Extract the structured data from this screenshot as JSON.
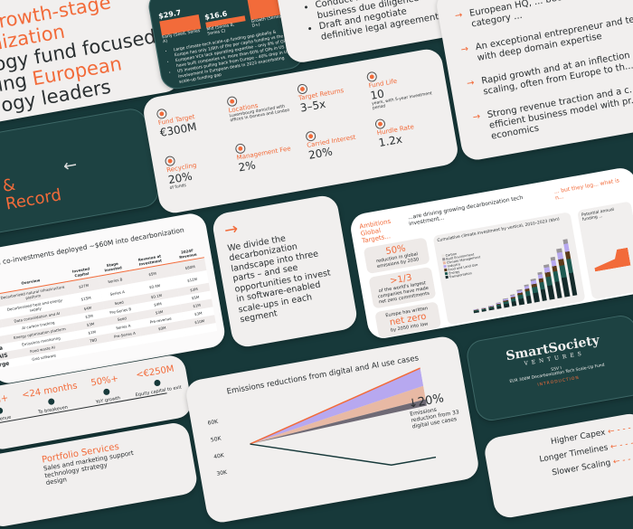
{
  "colors": {
    "background": "#17393a",
    "accent": "#f26b3a",
    "card": "#f1efee",
    "dark_card": "#1d4242"
  },
  "title_slide": {
    "line1": "growth-stage",
    "line2": "nization",
    "line3": "ogy fund focused",
    "line4a": "ing ",
    "line4b": "European",
    "line5": "ogy leaders"
  },
  "gap_slide": {
    "bars": [
      {
        "value": "$29.7",
        "label": "Early (Seed, Series A)"
      },
      {
        "value": "$16.6",
        "label": "Mid (Series B, Series C)"
      },
      {
        "value": "",
        "label": "Growth (Series D+)"
      }
    ],
    "bullets": [
      "Large climate-tech scale-up funding gap globally & Europe has only 1/8th of the per capita funding vs the US",
      "European VCs lack operating expertise – only 8% of GPs have built companies vs. more than 60% of GPs in US",
      "US investors pulling back from Europe – 40% drop in US involvement in European deals in 2023 exacerbating scale-up funding gap"
    ]
  },
  "diligence": {
    "bullets": [
      "Conduct ... and final business due diligence",
      "Draft and negotiate definitive legal agreements"
    ]
  },
  "criteria": {
    "items": [
      "European HQ, ... become a global category ...",
      "An exceptional entrepreneur and team with deep domain expertise",
      "Rapid growth and at an inflection ... of scaling, often from Europe to th...",
      "Strong revenue traction and a c... efficient business model with pr... unit economics"
    ]
  },
  "team": {
    "line1": "&",
    "line2": "Record",
    "arrow": "←"
  },
  "terms": {
    "items": [
      {
        "icon": "target-icon",
        "label": "Fund Target",
        "value": "€300M",
        "note": ""
      },
      {
        "icon": "location-pin-icon",
        "label": "Locations",
        "value": "",
        "note": "Luxembourg domiciled with offices in Geneva and London"
      },
      {
        "icon": "returns-icon",
        "label": "Target Returns",
        "value": "3–5x",
        "note": ""
      },
      {
        "icon": "calendar-icon",
        "label": "Fund Life",
        "value": "10",
        "note": "years, with 5-year investment period"
      },
      {
        "icon": "recycle-icon",
        "label": "Recycling",
        "value": "20%",
        "note": "of funds"
      },
      {
        "icon": "money-bag-icon",
        "label": "Management Fee",
        "value": "2%",
        "note": ""
      },
      {
        "icon": "timer-icon",
        "label": "Carried Interest",
        "value": "20%",
        "note": ""
      },
      {
        "icon": "hurdle-icon",
        "label": "Hurdle Rate",
        "value": "1.2x",
        "note": ""
      }
    ]
  },
  "table": {
    "title": "d and co-investments deployed ~$60M into decarbonization tech",
    "headers": [
      "Overview",
      "Invested Capital",
      "Stage Invested",
      "Revenue at Investment",
      "2024F Revenue"
    ],
    "rows": [
      {
        "name": "",
        "cells": [
          "Decarbonized natural infrastructure platform",
          "$27M",
          "Series B",
          "$5M",
          "$80M"
        ]
      },
      {
        "name": "",
        "cells": [
          "Decarbonized heat and energy supply",
          "$15M",
          "Series A",
          "$0.4M",
          "$12M"
        ]
      },
      {
        "name": "V",
        "cells": [
          "Data consolidation and AI",
          "$4M",
          "Seed",
          "$0.1M",
          "$3M"
        ]
      },
      {
        "name": "D",
        "cells": [
          "AI carbon tracking",
          "$3M",
          "Pre-Series B",
          "$4M",
          "$5M"
        ]
      },
      {
        "name": "",
        "cells": [
          "Energy optimisation platform",
          "$3M",
          "Seed",
          "$3M",
          "$1M"
        ]
      },
      {
        "name": "ra",
        "cells": [
          "Emissions monitoring",
          "$1M",
          "Series A",
          "Pre-revenue",
          "$3M"
        ]
      },
      {
        "name": "AIS",
        "cells": [
          "Food waste AI",
          "TBD",
          "Pre-Series A",
          "$0M",
          "$10M"
        ]
      },
      {
        "name": "rge",
        "cells": [
          "Grid software",
          "",
          "",
          "",
          ""
        ]
      }
    ]
  },
  "divide": {
    "arrow": "→",
    "text": "We divide the decarbonization landscape into three parts – and see opportunities to invest in software-enabled scale-ups in each segment"
  },
  "ambitions": {
    "title1": "Ambitions",
    "title2": "Global Targets...",
    "subtitle": "...are driving growing decarbonization tech investment...",
    "right_title": "... but they log... what is n...",
    "stats": [
      {
        "big": "50%",
        "text": "reduction in global emissions by 2030"
      },
      {
        "big": ">1/3",
        "text": "of the world's largest companies have made net zero commitments"
      },
      {
        "pre": "Europe has written",
        "big": "net zero",
        "text": "by 2050 into law"
      }
    ],
    "chart_title": "Cumulative climate investment by vertical, 2010–2023 ($bn)",
    "legend": [
      "Carbon",
      "Built Environment",
      "Climate Management",
      "Industry",
      "Food and Land Use",
      "Energy",
      "Transportation"
    ],
    "right_chart_title": "Potential annual funding ..."
  },
  "timeline": {
    "items": [
      {
        "value": "5M+",
        "label": "Revenue"
      },
      {
        "value": "<24 months",
        "label": "To breakeven"
      },
      {
        "value": "50%+",
        "label": "YoY growth"
      },
      {
        "value": "<€250M",
        "label": "Equity capital to exit"
      }
    ]
  },
  "portfolio": {
    "title": "Portfolio Services",
    "items": [
      "Sales and marketing support",
      "technology strategy",
      "design"
    ]
  },
  "emissions": {
    "title": "Emissions reductions from digital and AI use cases",
    "yticks": [
      "60K",
      "50K",
      "40K",
      "30K"
    ],
    "stat": "↓20%",
    "stat_text": "Emissions reduction from 33 digital use cases"
  },
  "brand": {
    "logo": "SmartSociety",
    "logo_sub": "VENTURES",
    "fund": "SSV I",
    "desc": "EUR 300M Decarbonization Tech Scale-Up Fund",
    "section": "INTRODUCTION"
  },
  "challenges": {
    "items": [
      "Higher Capex",
      "Longer Timelines",
      "Slower Scaling"
    ]
  }
}
